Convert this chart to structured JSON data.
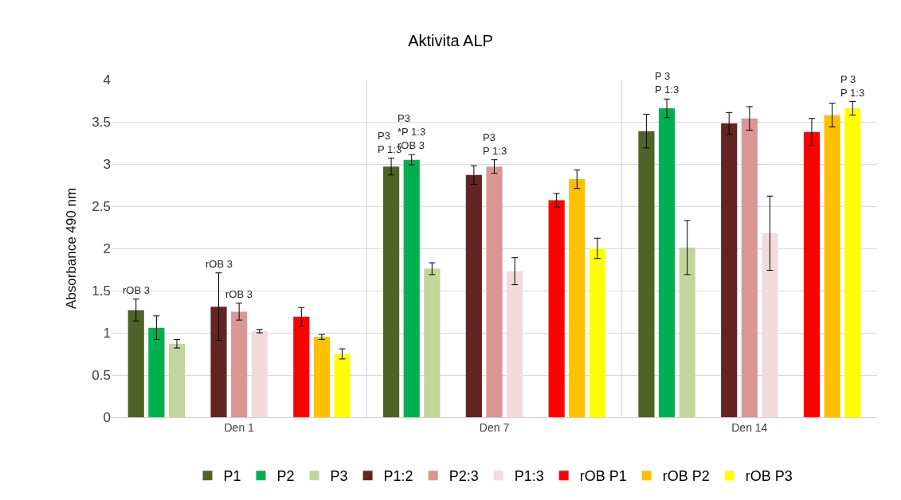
{
  "chart_data": {
    "type": "bar",
    "title": "Aktivita ALP",
    "ylabel": "Absorbance 490 nm",
    "categories": [
      "Den 1",
      "Den 7",
      "Den 14"
    ],
    "series": [
      {
        "name": "P1",
        "color": "#4f6228",
        "values": [
          1.27,
          2.97,
          3.39
        ],
        "errors": [
          0.13,
          0.1,
          0.2
        ]
      },
      {
        "name": "P2",
        "color": "#00b050",
        "values": [
          1.06,
          3.05,
          3.66
        ],
        "errors": [
          0.14,
          0.06,
          0.11
        ]
      },
      {
        "name": "P3",
        "color": "#c3d69b",
        "values": [
          0.87,
          1.76,
          2.01
        ],
        "errors": [
          0.05,
          0.07,
          0.32
        ]
      },
      {
        "name": "P1:2",
        "color": "#632523",
        "values": [
          1.31,
          2.87,
          3.48
        ],
        "errors": [
          0.4,
          0.11,
          0.13
        ]
      },
      {
        "name": "P2:3",
        "color": "#d99694",
        "values": [
          1.25,
          2.97,
          3.54
        ],
        "errors": [
          0.1,
          0.08,
          0.14
        ]
      },
      {
        "name": "P1:3",
        "color": "#f2dcdb",
        "values": [
          1.02,
          1.73,
          2.18
        ],
        "errors": [
          0.02,
          0.16,
          0.44
        ]
      },
      {
        "name": "rOB P1",
        "color": "#ff0000",
        "values": [
          1.19,
          2.57,
          3.38
        ],
        "errors": [
          0.11,
          0.08,
          0.16
        ]
      },
      {
        "name": "rOB P2",
        "color": "#ffc000",
        "values": [
          0.95,
          2.82,
          3.58
        ],
        "errors": [
          0.03,
          0.11,
          0.14
        ]
      },
      {
        "name": "rOB P3",
        "color": "#ffff00",
        "values": [
          0.75,
          2.0,
          3.66
        ],
        "errors": [
          0.06,
          0.12,
          0.08
        ]
      }
    ],
    "ylim": [
      0,
      4
    ],
    "yticks": [
      0,
      0.5,
      1,
      1.5,
      2,
      2.5,
      3,
      3.5,
      4
    ],
    "grid": "y",
    "legend": "bottom",
    "annotations": [
      "rOB 3",
      "rOB 3",
      "rOB 3",
      "P3\nP 1:3",
      "P3\n*P 1:3\nrOB 3",
      "P3\nP 1:3",
      "P 3\nP 1:3",
      "P 3\nP 1:3"
    ]
  }
}
